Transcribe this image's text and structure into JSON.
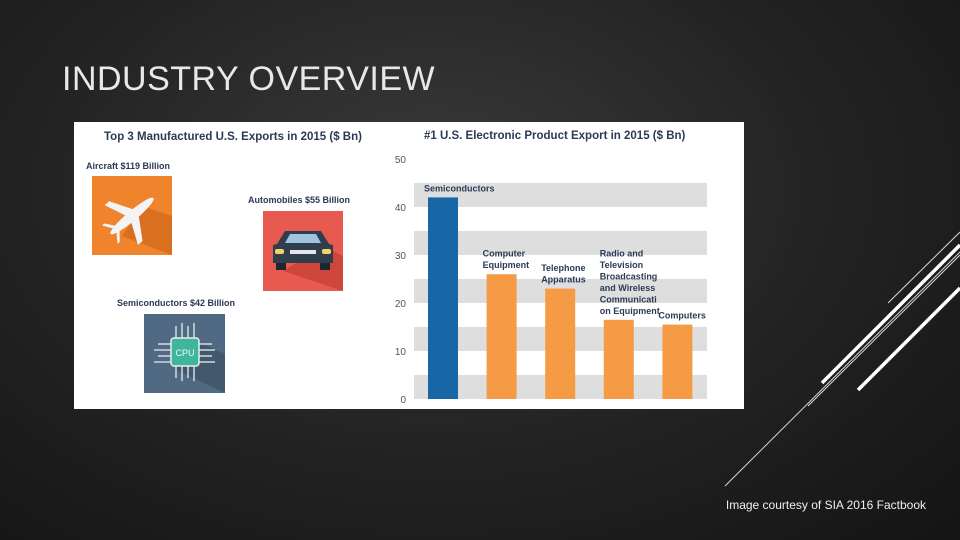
{
  "slide": {
    "title": "INDUSTRY OVERVIEW",
    "caption": "Image courtesy of SIA 2016 Factbook"
  },
  "left_panel": {
    "title": "Top 3 Manufactured U.S. Exports in 2015 ($ Bn)",
    "exports": [
      {
        "label": "Aircraft $119 Billion",
        "icon": "airplane-icon",
        "color": "#f0842c"
      },
      {
        "label": "Automobiles $55 Billion",
        "icon": "car-icon",
        "color": "#e85a4f"
      },
      {
        "label": "Semiconductors $42 Billion",
        "icon": "cpu-chip-icon",
        "color": "#4f6a82"
      }
    ],
    "cpu_text": "CPU"
  },
  "chart_data": {
    "type": "bar",
    "title": "#1 U.S. Electronic Product Export in 2015 ($ Bn)",
    "categories": [
      "Semiconductors",
      "Computer Equipment",
      "Telephone Apparatus",
      "Radio and Television Broadcasting and Wireless Communicati on Equipment",
      "Computers"
    ],
    "category_lines": [
      [
        "Semiconductors"
      ],
      [
        "Computer",
        "Equipment"
      ],
      [
        "Telephone",
        "Apparatus"
      ],
      [
        "Radio and",
        "Television",
        "Broadcasting",
        "and Wireless",
        "Communicati",
        "on Equipment"
      ],
      [
        "Computers"
      ]
    ],
    "values": [
      42,
      26,
      23,
      16.5,
      15.5
    ],
    "ylim": [
      0,
      50
    ],
    "yticks": [
      "0",
      "10",
      "20",
      "30",
      "40",
      "50"
    ],
    "bar_colors": [
      "#1766a6",
      "#f59a45",
      "#f59a45",
      "#f59a45",
      "#f59a45"
    ],
    "band_color": "#dedede",
    "grid": true
  }
}
